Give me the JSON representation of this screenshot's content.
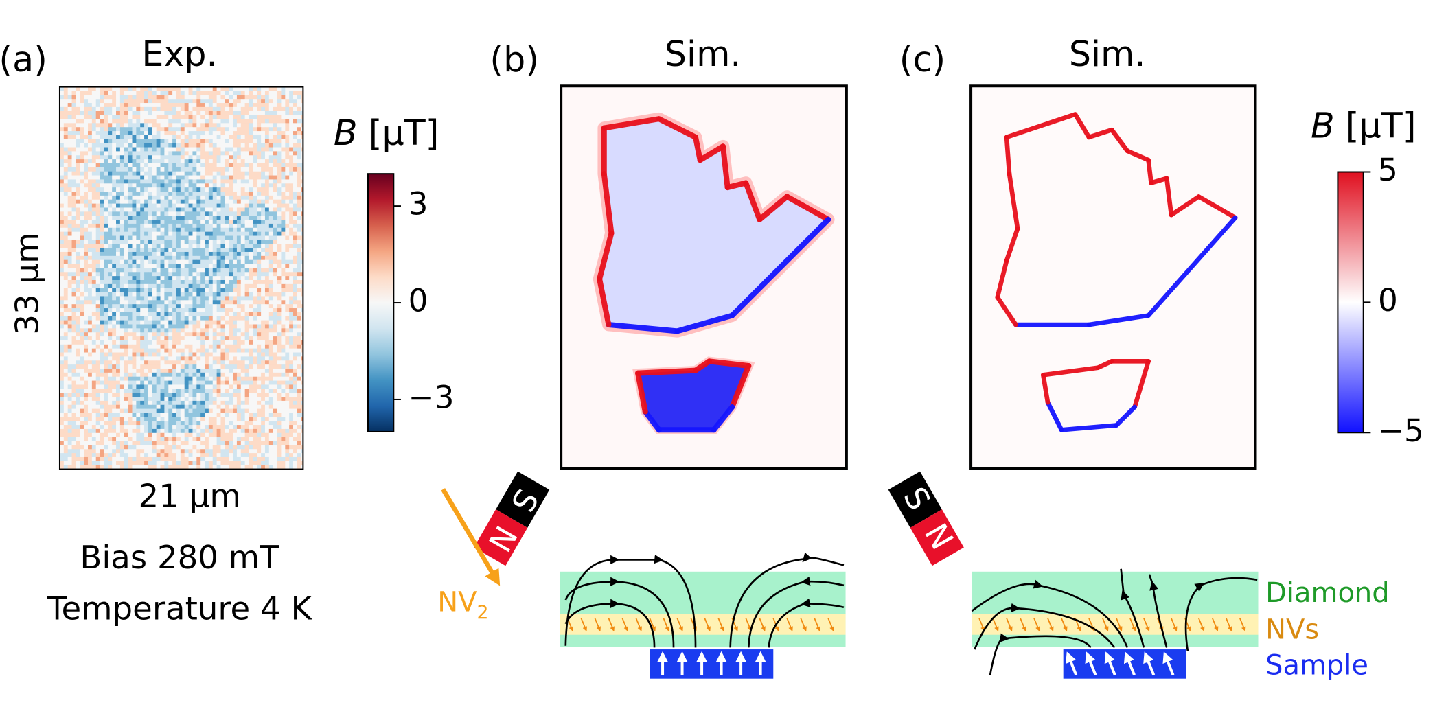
{
  "panels": [
    {
      "label": "(a)",
      "title": "Exp.",
      "height_label": "33 µm",
      "width_label": "21 µm",
      "notes": [
        "Bias 280 mT",
        "Temperature 4 K"
      ],
      "colorbar": {
        "symbol": "B",
        "unit": "[µT]",
        "clim": [
          -4,
          4
        ],
        "ticks": [
          3,
          0,
          {
            "value": -3,
            "label": "−3"
          }
        ]
      }
    },
    {
      "label": "(b)",
      "title": "Sim.",
      "magnet": [
        "S",
        "N"
      ],
      "nv_label": {
        "text": "NV",
        "subscript": "2"
      }
    },
    {
      "label": "(c)",
      "title": "Sim.",
      "magnet": [
        "S",
        "N"
      ],
      "colorbar": {
        "symbol": "B",
        "unit": "[µT]",
        "clim": [
          -5,
          5
        ],
        "ticks": [
          5,
          0,
          {
            "value": -5,
            "label": "−5"
          }
        ]
      },
      "layers": [
        "Diamond",
        "NVs",
        "Sample"
      ]
    }
  ]
}
